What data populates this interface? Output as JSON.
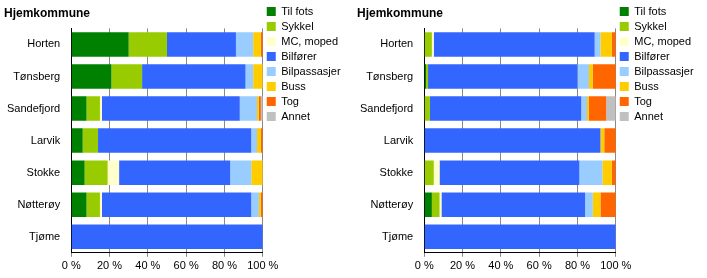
{
  "chart_data": [
    {
      "type": "bar",
      "title": "Hjemkommune",
      "orientation": "horizontal",
      "stacked": true,
      "legend": "right",
      "grid": true,
      "categories": [
        "Horten",
        "Tønsberg",
        "Sandefjord",
        "Larvik",
        "Stokke",
        "Nøtterøy",
        "Tjøme"
      ],
      "xlim": [
        0,
        100
      ],
      "xticks": [
        {
          "value": 0,
          "label": "0 %"
        },
        {
          "value": 20,
          "label": "20 %"
        },
        {
          "value": 40,
          "label": "40 %"
        },
        {
          "value": 60,
          "label": "60 %"
        },
        {
          "value": 80,
          "label": "80 %"
        },
        {
          "value": 100,
          "label": "100 %"
        }
      ],
      "series": [
        {
          "name": "Til fots",
          "color": "#008000",
          "values": [
            30,
            21,
            8,
            6,
            7,
            8,
            0
          ]
        },
        {
          "name": "Sykkel",
          "color": "#99cc00",
          "values": [
            20,
            16,
            7,
            8,
            12,
            7,
            0
          ]
        },
        {
          "name": "MC, moped",
          "color": "#ffffcc",
          "values": [
            0,
            0,
            1,
            0,
            6,
            1,
            0
          ]
        },
        {
          "name": "Bilfører",
          "color": "#3366ff",
          "values": [
            36,
            54,
            72,
            80,
            58,
            78,
            100
          ]
        },
        {
          "name": "Bilpassasjer",
          "color": "#99ccff",
          "values": [
            9,
            4,
            9,
            3,
            11,
            4,
            0
          ]
        },
        {
          "name": "Buss",
          "color": "#ffcc00",
          "values": [
            4,
            5,
            1,
            2,
            6,
            1,
            0
          ]
        },
        {
          "name": "Tog",
          "color": "#ff6600",
          "values": [
            1,
            0,
            1,
            1,
            0,
            1,
            0
          ]
        },
        {
          "name": "Annet",
          "color": "#c0c0c0",
          "values": [
            0,
            0,
            1,
            0,
            0,
            0,
            0
          ]
        }
      ]
    },
    {
      "type": "bar",
      "title": "Hjemkommune",
      "orientation": "horizontal",
      "stacked": true,
      "legend": "right",
      "grid": true,
      "categories": [
        "Horten",
        "Tønsberg",
        "Sandefjord",
        "Larvik",
        "Stokke",
        "Nøtterøy",
        "Tjøme"
      ],
      "xlim": [
        0,
        100
      ],
      "xticks": [
        {
          "value": 0,
          "label": "0 %"
        },
        {
          "value": 20,
          "label": "20 %"
        },
        {
          "value": 40,
          "label": "40 %"
        },
        {
          "value": 60,
          "label": "60 %"
        },
        {
          "value": 80,
          "label": "80 %"
        },
        {
          "value": 100,
          "label": "100 %"
        }
      ],
      "series": [
        {
          "name": "Til fots",
          "color": "#008000",
          "values": [
            0,
            1,
            0,
            0,
            0,
            4,
            0
          ]
        },
        {
          "name": "Sykkel",
          "color": "#99cc00",
          "values": [
            4,
            1,
            3,
            0,
            5,
            4,
            0
          ]
        },
        {
          "name": "MC, moped",
          "color": "#ffffcc",
          "values": [
            1,
            0,
            0,
            0,
            3,
            1,
            0
          ]
        },
        {
          "name": "Bilfører",
          "color": "#3366ff",
          "values": [
            84,
            78,
            79,
            92,
            73,
            75,
            100
          ]
        },
        {
          "name": "Bilpassasjer",
          "color": "#99ccff",
          "values": [
            3,
            6,
            3,
            0,
            12,
            4,
            0
          ]
        },
        {
          "name": "Buss",
          "color": "#ffcc00",
          "values": [
            6,
            2,
            1,
            2,
            5,
            4,
            0
          ]
        },
        {
          "name": "Tog",
          "color": "#ff6600",
          "values": [
            2,
            12,
            9,
            6,
            2,
            8,
            0
          ]
        },
        {
          "name": "Annet",
          "color": "#c0c0c0",
          "values": [
            0,
            0,
            5,
            0,
            0,
            0,
            0
          ]
        }
      ]
    }
  ]
}
